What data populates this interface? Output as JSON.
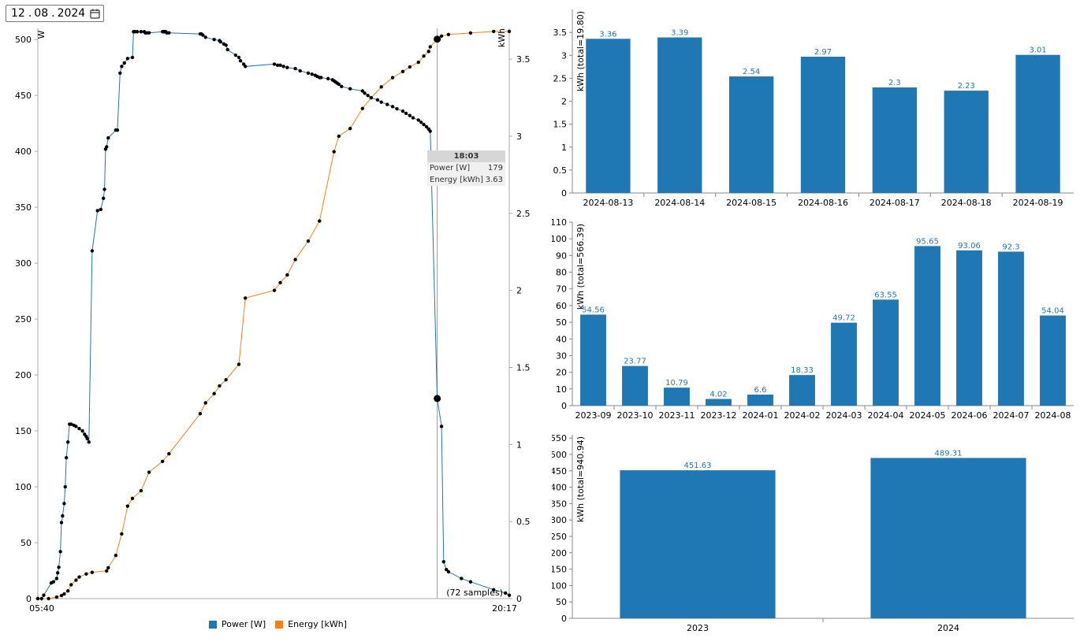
{
  "date_picker": {
    "day": "12",
    "month": "08",
    "year": "2024",
    "separator": ".",
    "icon": "calendar-icon"
  },
  "colors": {
    "power": "#1f77b4",
    "energy": "#ff7f0e",
    "bar": "#1f77b4",
    "bar_label": "#1f77b4"
  },
  "main_chart": {
    "left_axis_unit": "W",
    "right_axis_unit": "kWh",
    "x_start_label": "05:40",
    "x_end_label": "20:17",
    "samples_note": "(72 samples)",
    "tooltip": {
      "time": "18:03",
      "rows": [
        {
          "label": "Power [W]",
          "value": "179"
        },
        {
          "label": "Energy [kWh]",
          "value": "3.63"
        }
      ]
    },
    "legend": [
      {
        "label": "Power [W]",
        "color": "#1f77b4"
      },
      {
        "label": "Energy [kWh]",
        "color": "#ff7f0e"
      }
    ]
  },
  "chart_data": [
    {
      "type": "line",
      "x_range": [
        "05:40",
        "20:17"
      ],
      "cursor_time": "18:03",
      "series": [
        {
          "name": "Power [W]",
          "axis": "left",
          "ylim": [
            0,
            510
          ],
          "x": [
            "05:40",
            "05:47",
            "05:51",
            "06:05",
            "06:09",
            "06:15",
            "06:17",
            "06:19",
            "06:22",
            "06:24",
            "06:26",
            "06:29",
            "06:31",
            "06:33",
            "06:36",
            "06:39",
            "06:42",
            "06:47",
            "06:51",
            "06:57",
            "07:03",
            "07:07",
            "07:10",
            "07:12",
            "07:15",
            "07:21",
            "07:31",
            "07:37",
            "07:42",
            "07:44",
            "07:46",
            "07:48",
            "07:51",
            "08:05",
            "08:08",
            "08:13",
            "08:16",
            "08:21",
            "08:27",
            "08:36",
            "08:38",
            "08:41",
            "08:45",
            "08:52",
            "08:58",
            "09:00",
            "09:03",
            "09:07",
            "09:32",
            "09:34",
            "09:36",
            "09:38",
            "09:40",
            "09:44",
            "10:42",
            "10:44",
            "10:47",
            "10:52",
            "11:08",
            "11:18",
            "11:20",
            "11:26",
            "11:30",
            "11:33",
            "11:48",
            "11:54",
            "11:57",
            "12:03",
            "12:06",
            "13:00",
            "13:06",
            "13:11",
            "13:17",
            "13:24",
            "13:39",
            "13:48",
            "14:03",
            "14:10",
            "14:16",
            "14:20",
            "14:24",
            "14:27",
            "14:40",
            "14:48",
            "14:51",
            "14:54",
            "14:57",
            "15:00",
            "15:05",
            "15:21",
            "15:44",
            "15:48",
            "15:54",
            "16:00",
            "16:12",
            "16:19",
            "16:30",
            "16:40",
            "16:48",
            "16:59",
            "17:05",
            "17:12",
            "17:18",
            "17:28",
            "17:33",
            "17:38",
            "17:43",
            "17:47",
            "17:50",
            "18:03",
            "18:11",
            "18:15",
            "18:20",
            "18:24",
            "18:48",
            "19:05",
            "19:48",
            "20:10",
            "20:17"
          ],
          "values": [
            0,
            0,
            3,
            14,
            15,
            18,
            23,
            28,
            42,
            68,
            74,
            85,
            100,
            126,
            140,
            156,
            156,
            155,
            154,
            152,
            150,
            147,
            145,
            143,
            140,
            311,
            347,
            348,
            358,
            366,
            402,
            404,
            412,
            419,
            419,
            470,
            476,
            479,
            483,
            484,
            507,
            507,
            507,
            507,
            507,
            506,
            506,
            506,
            507,
            507,
            507,
            507,
            506,
            506,
            505,
            505,
            504,
            502,
            500,
            499,
            498,
            496,
            495,
            491,
            486,
            484,
            481,
            478,
            476,
            478,
            477,
            477,
            476,
            475,
            474,
            472,
            470,
            469,
            468,
            467,
            466,
            466,
            465,
            464,
            463,
            462,
            461,
            460,
            458,
            456,
            454,
            452,
            450,
            448,
            446,
            444,
            442,
            440,
            438,
            436,
            434,
            432,
            430,
            428,
            426,
            424,
            422,
            420,
            418,
            179,
            154,
            33,
            26,
            24,
            18,
            15,
            8,
            5,
            3
          ]
        },
        {
          "name": "Energy [kWh]",
          "axis": "right",
          "ylim": [
            0,
            3.7
          ],
          "x": [
            "05:40",
            "06:00",
            "06:15",
            "06:24",
            "06:29",
            "06:36",
            "06:42",
            "06:51",
            "06:57",
            "07:10",
            "07:21",
            "07:48",
            "07:51",
            "08:05",
            "08:16",
            "08:27",
            "08:36",
            "08:52",
            "09:07",
            "09:32",
            "09:44",
            "10:42",
            "10:52",
            "11:08",
            "11:18",
            "11:30",
            "11:54",
            "12:06",
            "13:00",
            "13:11",
            "13:24",
            "13:39",
            "14:03",
            "14:24",
            "14:51",
            "15:00",
            "15:21",
            "15:44",
            "16:00",
            "16:19",
            "16:40",
            "16:59",
            "17:12",
            "17:28",
            "17:38",
            "17:47",
            "17:50",
            "18:03",
            "18:11",
            "18:24",
            "19:05",
            "19:48",
            "20:17"
          ],
          "values": [
            0,
            0,
            0.01,
            0.02,
            0.03,
            0.05,
            0.09,
            0.12,
            0.14,
            0.16,
            0.17,
            0.18,
            0.2,
            0.28,
            0.42,
            0.6,
            0.65,
            0.7,
            0.82,
            0.89,
            0.94,
            1.2,
            1.27,
            1.33,
            1.38,
            1.42,
            1.52,
            1.95,
            2.0,
            2.05,
            2.1,
            2.2,
            2.32,
            2.45,
            2.9,
            3.0,
            3.05,
            3.18,
            3.25,
            3.32,
            3.38,
            3.42,
            3.45,
            3.48,
            3.52,
            3.55,
            3.58,
            3.63,
            3.65,
            3.66,
            3.67,
            3.68,
            3.68
          ]
        }
      ]
    },
    {
      "type": "bar",
      "ylabel": "kWh (total=19.80)",
      "ylim": [
        0,
        4.0
      ],
      "yticks": [
        0,
        0.5,
        1,
        1.5,
        2,
        2.5,
        3,
        3.5
      ],
      "categories": [
        "2024-08-13",
        "2024-08-14",
        "2024-08-15",
        "2024-08-16",
        "2024-08-17",
        "2024-08-18",
        "2024-08-19"
      ],
      "values": [
        3.36,
        3.39,
        2.54,
        2.97,
        2.3,
        2.23,
        3.01
      ]
    },
    {
      "type": "bar",
      "ylabel": "kWh (total=566.39)",
      "ylim": [
        0,
        110
      ],
      "yticks": [
        0,
        10,
        20,
        30,
        40,
        50,
        60,
        70,
        80,
        90,
        100,
        110
      ],
      "categories": [
        "2023-09",
        "2023-10",
        "2023-11",
        "2023-12",
        "2024-01",
        "2024-02",
        "2024-03",
        "2024-04",
        "2024-05",
        "2024-06",
        "2024-07",
        "2024-08"
      ],
      "values": [
        54.56,
        23.77,
        10.79,
        4.02,
        6.6,
        18.33,
        49.72,
        63.55,
        95.65,
        93.06,
        92.3,
        54.04
      ]
    },
    {
      "type": "bar",
      "ylabel": "kWh (total=940.94)",
      "ylim": [
        0,
        560
      ],
      "yticks": [
        0,
        50,
        100,
        150,
        200,
        250,
        300,
        350,
        400,
        450,
        500,
        550
      ],
      "categories": [
        "2023",
        "2024"
      ],
      "values": [
        451.63,
        489.31
      ]
    }
  ]
}
